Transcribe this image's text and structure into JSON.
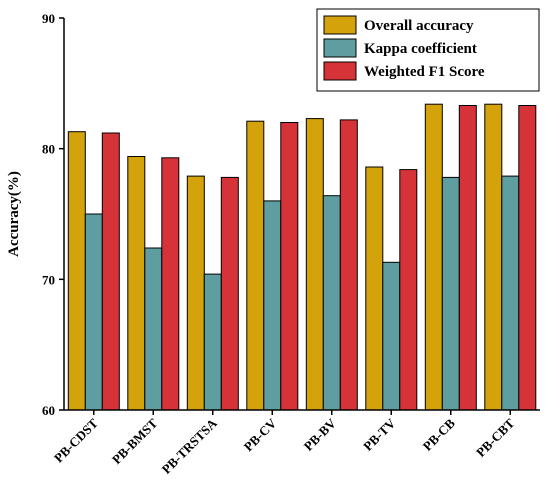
{
  "chart_data": {
    "type": "bar",
    "title": "",
    "xlabel": "",
    "ylabel": "Accuracy(%)",
    "ylim": [
      60,
      90
    ],
    "yticks": [
      60,
      70,
      80,
      90
    ],
    "grid": false,
    "legend_position": "top-right",
    "categories": [
      "PB-CDST",
      "PB-BMST",
      "PB-TRSTSA",
      "PB-CV",
      "PB-BV",
      "PB-TV",
      "PB-CB",
      "PB-CBT"
    ],
    "series": [
      {
        "name": "Overall accuracy",
        "color": "#D4A20A",
        "values": [
          81.3,
          79.4,
          77.9,
          82.1,
          82.3,
          78.6,
          83.4,
          83.4
        ]
      },
      {
        "name": "Kappa coefficient",
        "color": "#5E9EA0",
        "values": [
          75.0,
          72.4,
          70.4,
          76.0,
          76.4,
          71.3,
          77.8,
          77.9
        ]
      },
      {
        "name": "Weighted F1 Score",
        "color": "#D63339",
        "values": [
          81.2,
          79.3,
          77.8,
          82.0,
          82.2,
          78.4,
          83.3,
          83.3
        ]
      }
    ]
  }
}
